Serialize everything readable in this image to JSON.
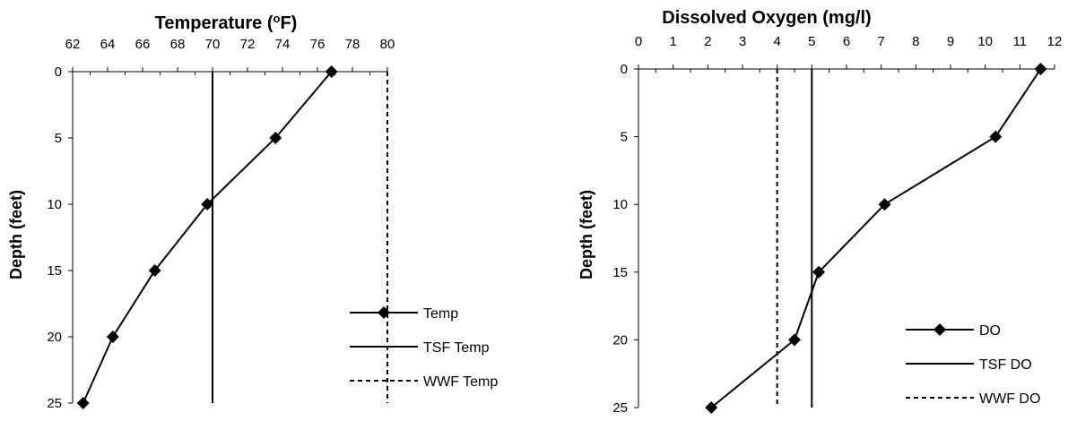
{
  "chart_data": [
    {
      "type": "line",
      "title_main": "Temperature (",
      "title_sup": "o",
      "title_end": "F)",
      "ylabel": "Depth (feet)",
      "xlim": [
        62,
        80
      ],
      "ylim": [
        0,
        25
      ],
      "y_inverted": true,
      "x_axis_position": "top",
      "xticks": [
        62,
        64,
        66,
        68,
        70,
        72,
        74,
        76,
        78,
        80
      ],
      "yticks": [
        0,
        5,
        10,
        15,
        20,
        25
      ],
      "grid": false,
      "legend_position": "bottom-right",
      "series": [
        {
          "name": "Temp",
          "style": "solid-diamond",
          "color": "#000000",
          "x": [
            76.8,
            73.6,
            69.7,
            66.7,
            64.3,
            62.6
          ],
          "y": [
            0,
            5,
            10,
            15,
            20,
            25
          ]
        },
        {
          "name": "TSF Temp",
          "style": "solid",
          "color": "#000000",
          "x": [
            70,
            70
          ],
          "y": [
            0,
            25
          ]
        },
        {
          "name": "WWF Temp",
          "style": "dashed",
          "color": "#000000",
          "x": [
            80,
            80
          ],
          "y": [
            0,
            25
          ]
        }
      ]
    },
    {
      "type": "line",
      "title": "Dissolved Oxygen (mg/l)",
      "ylabel": "Depth (feet)",
      "xlim": [
        0,
        12
      ],
      "ylim": [
        0,
        25
      ],
      "y_inverted": true,
      "x_axis_position": "top",
      "xticks": [
        0,
        1,
        2,
        3,
        4,
        5,
        6,
        7,
        8,
        9,
        10,
        11,
        12
      ],
      "yticks": [
        0,
        5,
        10,
        15,
        20,
        25
      ],
      "grid": false,
      "legend_position": "bottom-right",
      "series": [
        {
          "name": "DO",
          "style": "solid-diamond",
          "color": "#000000",
          "x": [
            11.6,
            10.3,
            7.1,
            5.2,
            4.5,
            2.1
          ],
          "y": [
            0,
            5,
            10,
            15,
            20,
            25
          ]
        },
        {
          "name": "TSF DO",
          "style": "solid",
          "color": "#000000",
          "x": [
            5,
            5
          ],
          "y": [
            0,
            25
          ]
        },
        {
          "name": "WWF DO",
          "style": "dashed",
          "color": "#000000",
          "x": [
            4,
            4
          ],
          "y": [
            0,
            25
          ]
        }
      ]
    }
  ]
}
